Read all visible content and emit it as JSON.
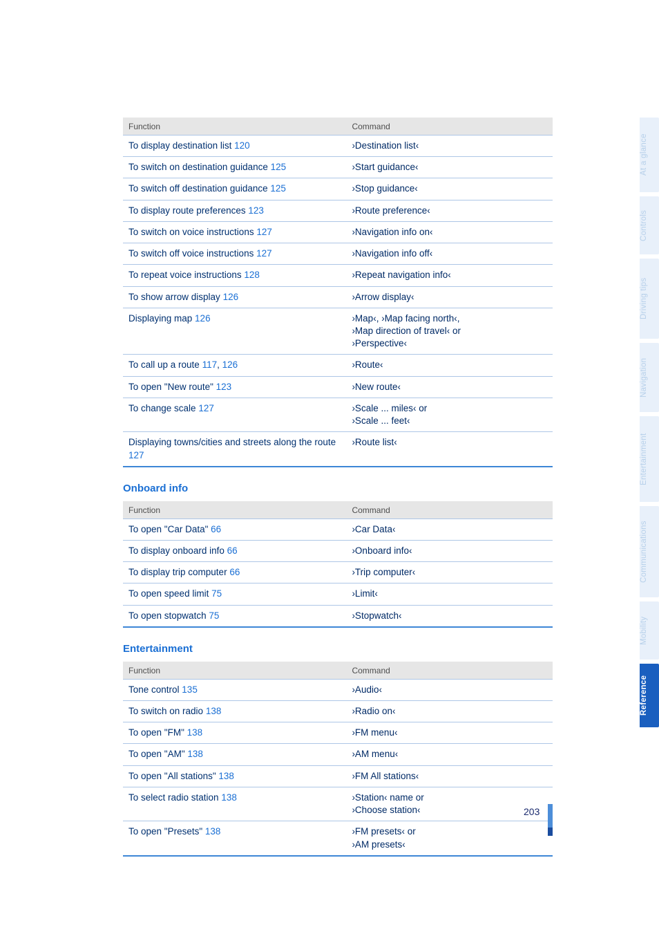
{
  "colors": {
    "link": "#1a6fd4",
    "text": "#003070",
    "cmd": "#002a66",
    "header_bg": "#e6e6e6",
    "row_border": "#adc6e6",
    "table_bottom": "#3d86d6",
    "tab_inactive_bg": "#e8f0fa",
    "tab_inactive_fg": "#b7d0ea",
    "tab_active_bg": "#1a5fbf",
    "tab_active_fg": "#ffffff"
  },
  "headers": {
    "function": "Function",
    "command": "Command"
  },
  "sections": [
    {
      "title": null,
      "rows": [
        {
          "func": "To display destination list",
          "refs": [
            "120"
          ],
          "cmd": "›Destination list‹"
        },
        {
          "func": "To switch on destination guidance",
          "refs": [
            "125"
          ],
          "cmd": "›Start guidance‹"
        },
        {
          "func": "To switch off destination guidance",
          "refs": [
            "125"
          ],
          "cmd": "›Stop guidance‹"
        },
        {
          "func": "To display route preferences",
          "refs": [
            "123"
          ],
          "cmd": "›Route preference‹"
        },
        {
          "func": "To switch on voice instructions",
          "refs": [
            "127"
          ],
          "cmd": "›Navigation info on‹"
        },
        {
          "func": "To switch off voice instructions",
          "refs": [
            "127"
          ],
          "cmd": "›Navigation info off‹"
        },
        {
          "func": "To repeat voice instructions",
          "refs": [
            "128"
          ],
          "cmd": "›Repeat navigation info‹"
        },
        {
          "func": "To show arrow display",
          "refs": [
            "126"
          ],
          "cmd": "›Arrow display‹"
        },
        {
          "func": "Displaying map",
          "refs": [
            "126"
          ],
          "cmd": "›Map‹, ›Map facing north‹,\n›Map direction of travel‹ or\n›Perspective‹"
        },
        {
          "func": "To call up a route",
          "refs": [
            "117",
            "126"
          ],
          "cmd": "›Route‹"
        },
        {
          "func": "To open \"New route\"",
          "refs": [
            "123"
          ],
          "cmd": "›New route‹"
        },
        {
          "func": "To change scale",
          "refs": [
            "127"
          ],
          "cmd": "›Scale ... miles‹ or\n›Scale ... feet‹"
        },
        {
          "func": "Displaying towns/cities and streets along the route",
          "refs": [
            "127"
          ],
          "cmd": "›Route list‹"
        }
      ]
    },
    {
      "title": "Onboard info",
      "rows": [
        {
          "func": "To open \"Car Data\"",
          "refs": [
            "66"
          ],
          "cmd": "›Car Data‹"
        },
        {
          "func": "To display onboard info",
          "refs": [
            "66"
          ],
          "cmd": "›Onboard info‹"
        },
        {
          "func": "To display trip computer",
          "refs": [
            "66"
          ],
          "cmd": "›Trip computer‹"
        },
        {
          "func": "To open speed limit",
          "refs": [
            "75"
          ],
          "cmd": "›Limit‹"
        },
        {
          "func": "To open stopwatch",
          "refs": [
            "75"
          ],
          "cmd": "›Stopwatch‹"
        }
      ]
    },
    {
      "title": "Entertainment",
      "rows": [
        {
          "func": "Tone control",
          "refs": [
            "135"
          ],
          "cmd": "›Audio‹"
        },
        {
          "func": "To switch on radio",
          "refs": [
            "138"
          ],
          "cmd": "›Radio on‹"
        },
        {
          "func": "To open \"FM\"",
          "refs": [
            "138"
          ],
          "cmd": "›FM menu‹"
        },
        {
          "func": "To open \"AM\"",
          "refs": [
            "138"
          ],
          "cmd": "›AM menu‹"
        },
        {
          "func": "To open \"All stations\"",
          "refs": [
            "138"
          ],
          "cmd": "›FM All stations‹"
        },
        {
          "func": "To select radio station",
          "refs": [
            "138"
          ],
          "cmd": "›Station‹ name or\n›Choose station‹"
        },
        {
          "func": "To open \"Presets\"",
          "refs": [
            "138"
          ],
          "cmd": "›FM presets‹ or\n›AM presets‹"
        }
      ]
    }
  ],
  "page_number": "203",
  "tabs": [
    {
      "label": "At a glance",
      "active": false
    },
    {
      "label": "Controls",
      "active": false
    },
    {
      "label": "Driving tips",
      "active": false
    },
    {
      "label": "Navigation",
      "active": false
    },
    {
      "label": "Entertainment",
      "active": false
    },
    {
      "label": "Communications",
      "active": false
    },
    {
      "label": "Mobility",
      "active": false
    },
    {
      "label": "Reference",
      "active": true
    }
  ]
}
